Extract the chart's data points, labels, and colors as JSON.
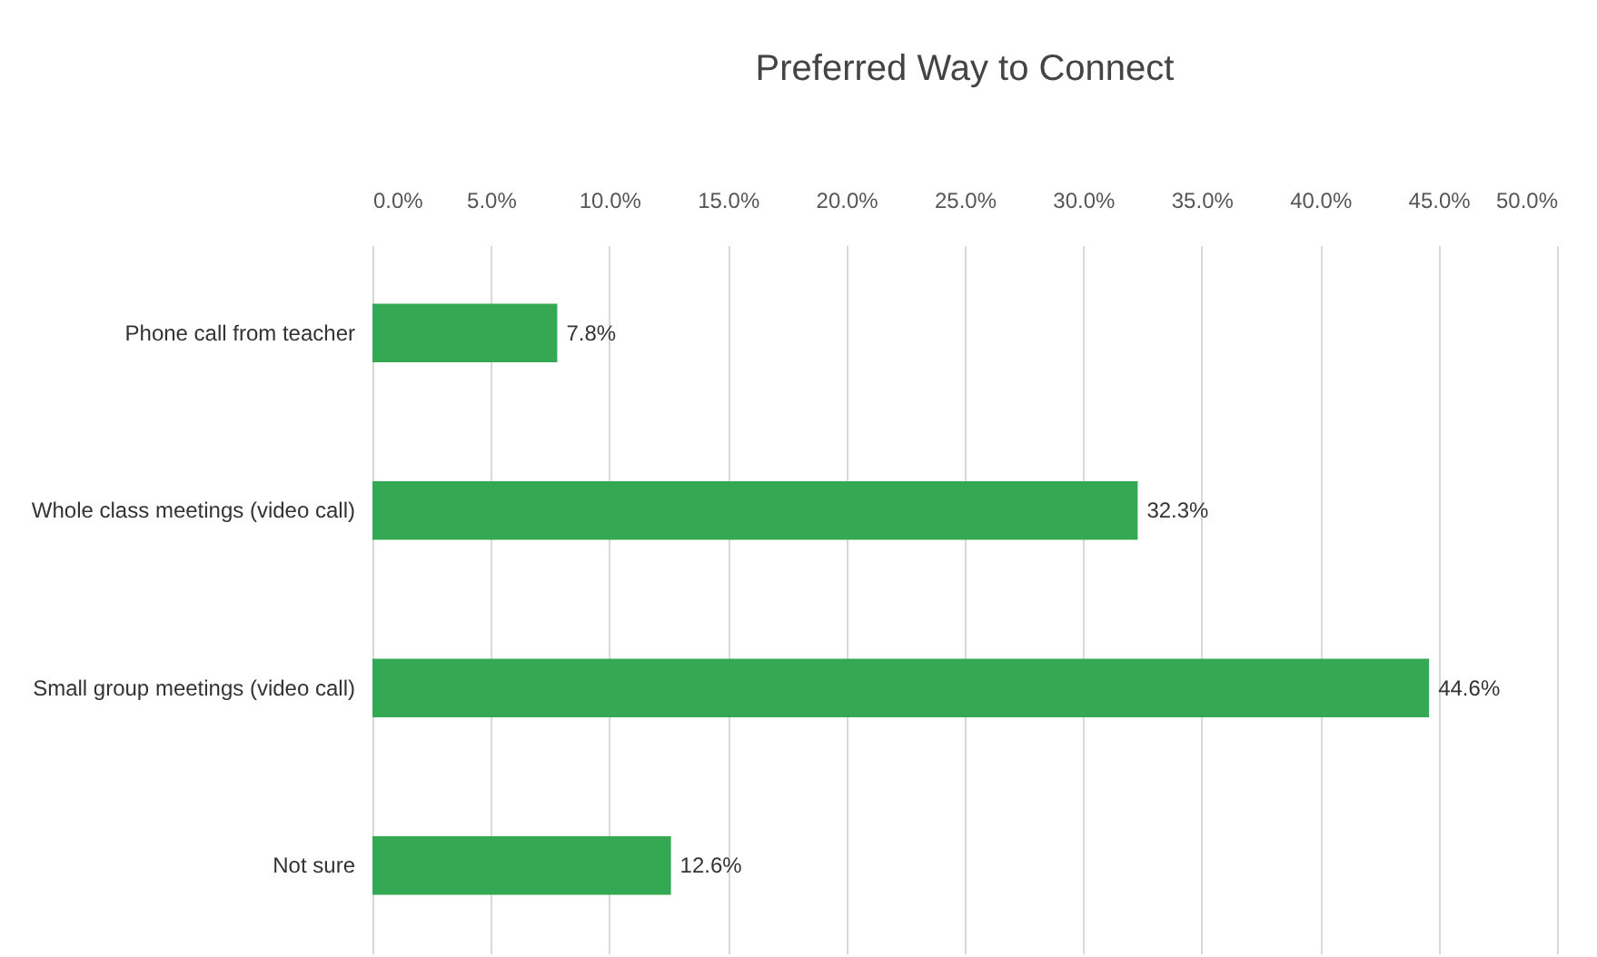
{
  "chart_data": {
    "type": "bar",
    "orientation": "horizontal",
    "title": "Preferred Way to Connect",
    "categories": [
      "Phone call from teacher",
      "Whole class meetings (video call)",
      "Small group meetings (video call)",
      "Not sure"
    ],
    "values": [
      7.8,
      32.3,
      44.6,
      12.6
    ],
    "value_labels": [
      "7.8%",
      "32.3%",
      "44.6%",
      "12.6%"
    ],
    "color": "#34a853",
    "xlim": [
      0,
      50
    ],
    "xticks": [
      {
        "value": 0,
        "label": "0.0%"
      },
      {
        "value": 5,
        "label": "5.0%"
      },
      {
        "value": 10,
        "label": "10.0%"
      },
      {
        "value": 15,
        "label": "15.0%"
      },
      {
        "value": 20,
        "label": "20.0%"
      },
      {
        "value": 25,
        "label": "25.0%"
      },
      {
        "value": 30,
        "label": "30.0%"
      },
      {
        "value": 35,
        "label": "35.0%"
      },
      {
        "value": 40,
        "label": "40.0%"
      },
      {
        "value": 45,
        "label": "45.0%"
      },
      {
        "value": 50,
        "label": "50.0%"
      }
    ],
    "grid": "x"
  }
}
